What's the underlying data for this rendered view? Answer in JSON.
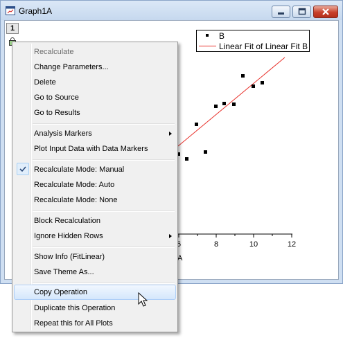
{
  "window": {
    "title": "Graph1A"
  },
  "layer": {
    "number": "1"
  },
  "legend": {
    "items": [
      {
        "label": "B"
      },
      {
        "label": "Linear Fit of Linear Fit B"
      }
    ]
  },
  "colors": {
    "fit_line": "#e8302a",
    "highlight": "#d5e7fc"
  },
  "axis": {
    "x_ticks": [
      "6",
      "8",
      "10",
      "12"
    ],
    "x_title_fragment": "A"
  },
  "context_menu": {
    "items": [
      {
        "label": "Recalculate",
        "disabled": true
      },
      {
        "label": "Change Parameters..."
      },
      {
        "label": "Delete"
      },
      {
        "label": "Go to Source"
      },
      {
        "label": "Go to Results"
      },
      {
        "label": "Analysis Markers",
        "submenu": true
      },
      {
        "label": "Plot Input Data with Data Markers"
      },
      {
        "label": "Recalculate Mode: Manual",
        "checked": true
      },
      {
        "label": "Recalculate Mode: Auto"
      },
      {
        "label": "Recalculate Mode: None"
      },
      {
        "label": "Block Recalculation"
      },
      {
        "label": "Ignore Hidden Rows",
        "submenu": true
      },
      {
        "label": "Show Info (FitLinear)"
      },
      {
        "label": "Save Theme As..."
      },
      {
        "label": "Copy Operation",
        "highlighted": true
      },
      {
        "label": "Duplicate this Operation"
      },
      {
        "label": "Repeat this for All Plots"
      }
    ]
  }
}
